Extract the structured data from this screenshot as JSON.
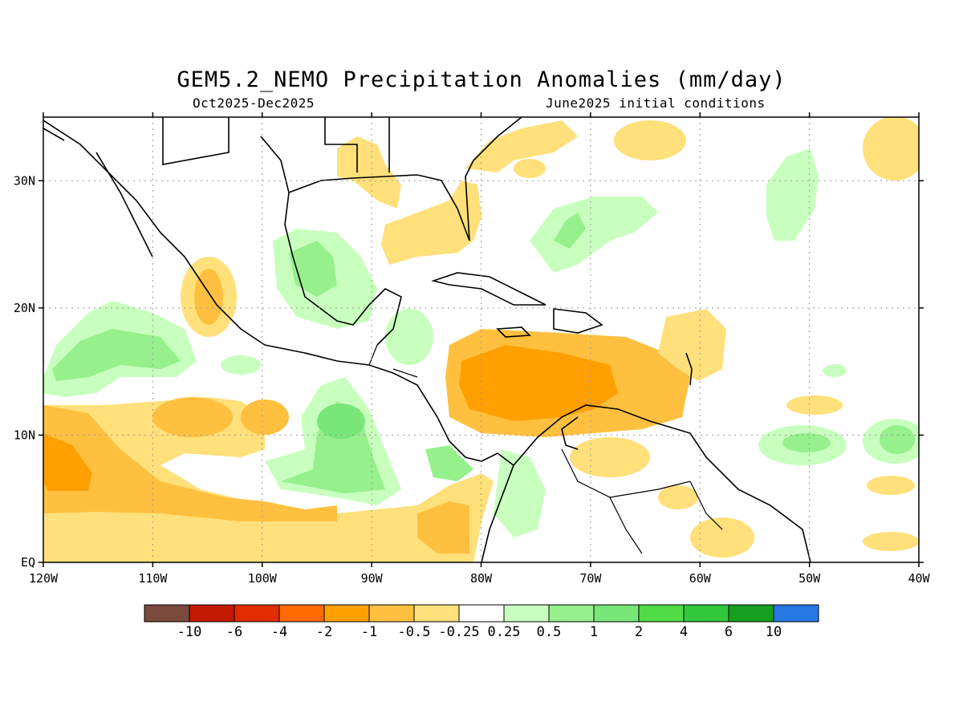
{
  "title": "GEM5.2_NEMO Precipitation Anomalies (mm/day)",
  "subtitle_left": "Oct2025-Dec2025",
  "subtitle_right": "June2025 initial conditions",
  "map": {
    "lon_range": [
      -120,
      -40
    ],
    "lat_range": [
      0,
      35
    ],
    "lon_ticks": [
      {
        "value": -120,
        "label": "120W"
      },
      {
        "value": -110,
        "label": "110W"
      },
      {
        "value": -100,
        "label": "100W"
      },
      {
        "value": -90,
        "label": "90W"
      },
      {
        "value": -80,
        "label": "80W"
      },
      {
        "value": -70,
        "label": "70W"
      },
      {
        "value": -60,
        "label": "60W"
      },
      {
        "value": -50,
        "label": "50W"
      },
      {
        "value": -40,
        "label": "40W"
      }
    ],
    "lat_ticks": [
      {
        "value": 0,
        "label": "EQ"
      },
      {
        "value": 10,
        "label": "10N"
      },
      {
        "value": 20,
        "label": "20N"
      },
      {
        "value": 30,
        "label": "30N"
      }
    ],
    "grid": "dotted"
  },
  "colorbar": {
    "colors": [
      "#7a4a3d",
      "#c41a00",
      "#e02d00",
      "#ff6a00",
      "#ffa000",
      "#ffc040",
      "#ffe07a",
      "#ffffff",
      "#c8ffbe",
      "#96f08c",
      "#78e678",
      "#50dc46",
      "#32c83c",
      "#14a01e",
      "#2878e6"
    ],
    "labels": [
      "-10",
      "-6",
      "-4",
      "-2",
      "-1",
      "-0.5",
      "-0.25",
      "0.25",
      "0.5",
      "1",
      "2",
      "4",
      "6",
      "10"
    ]
  }
}
